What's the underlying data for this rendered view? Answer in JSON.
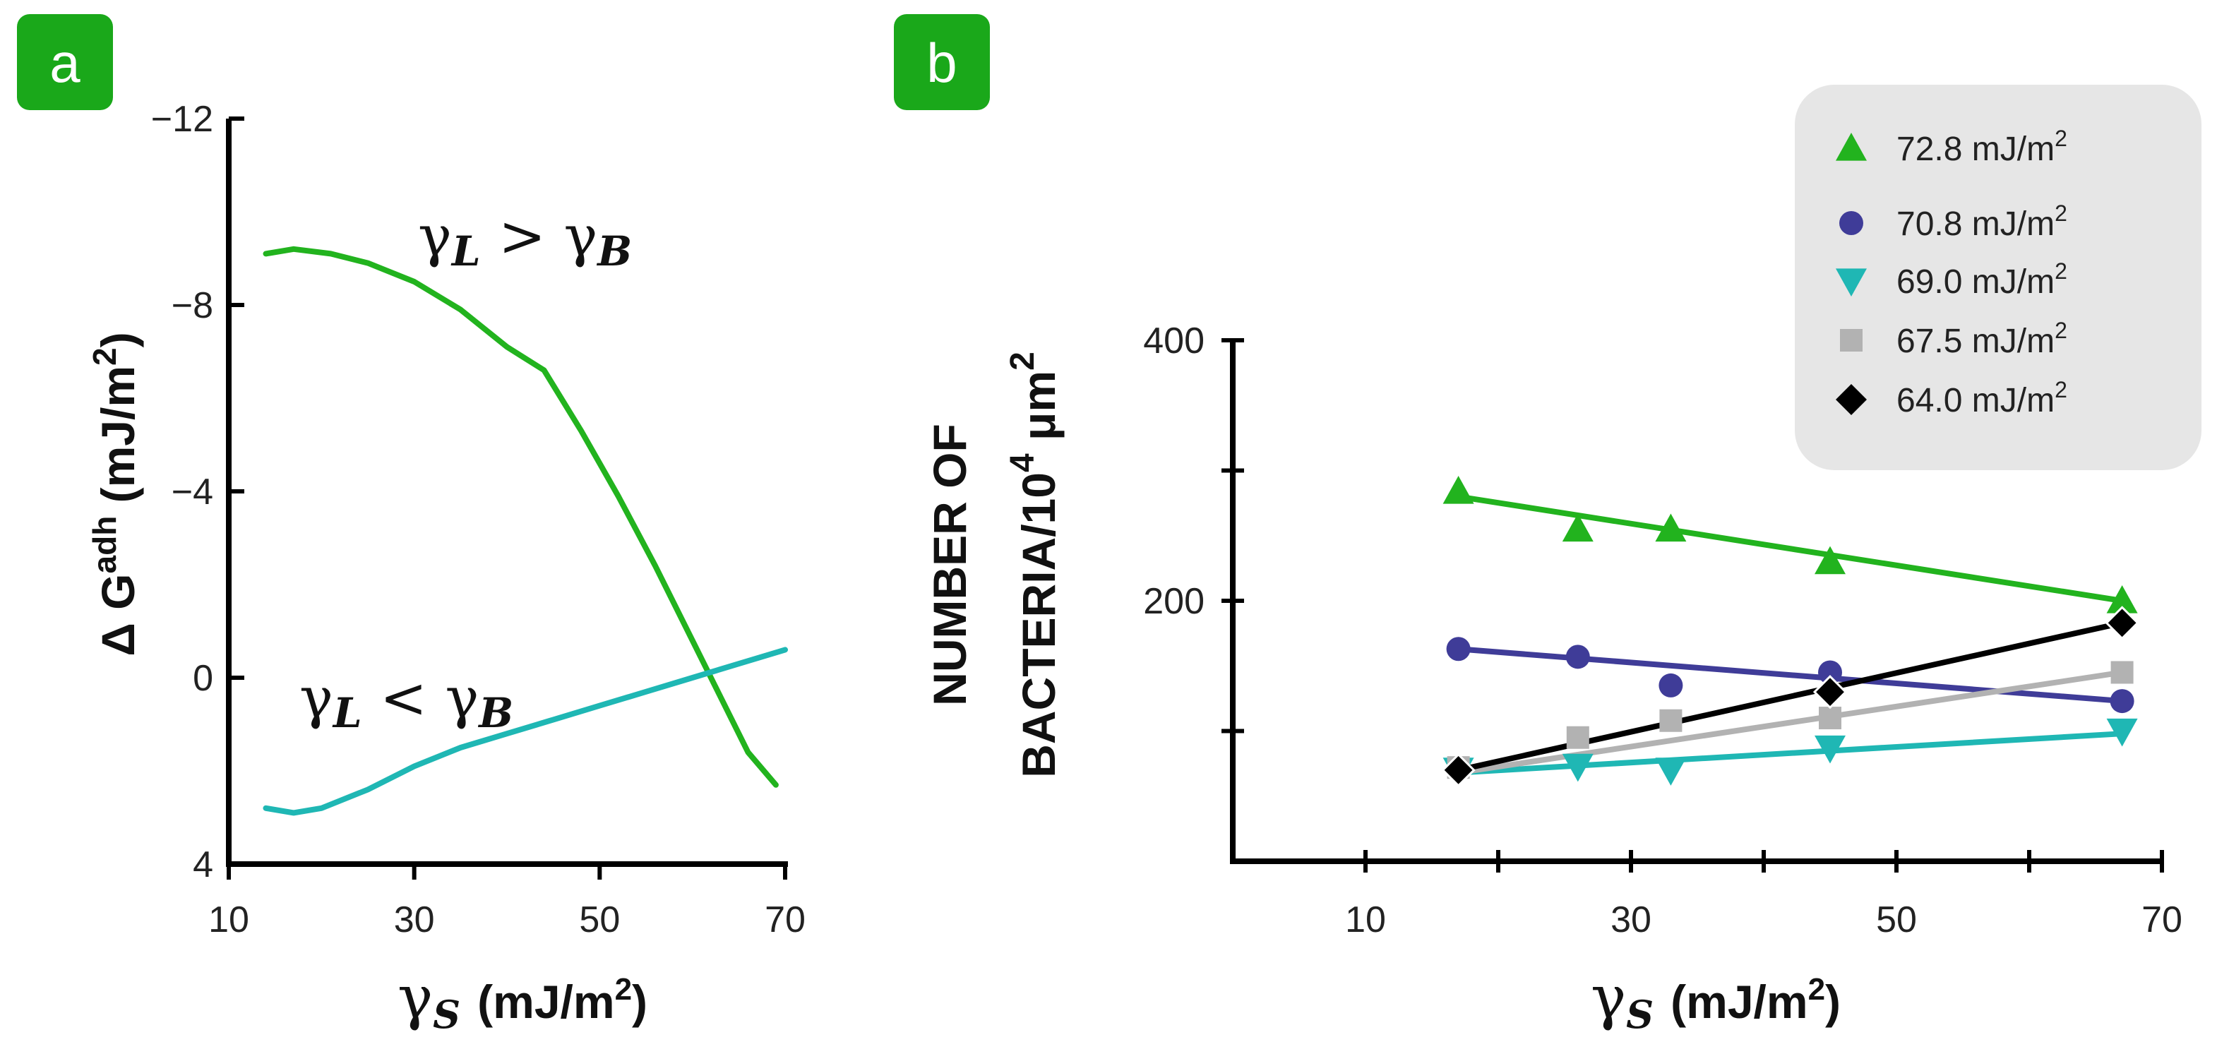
{
  "colors": {
    "green": "#22b31e",
    "navy": "#3f3c98",
    "teal": "#1fb7b4",
    "gray": "#b2b2b2",
    "black": "#000000",
    "label_bg": "#1aa81a",
    "legend_bg": "#e6e6e6"
  },
  "chart_data": [
    {
      "panel": "a",
      "type": "line",
      "xlabel_symbol": "γ",
      "xlabel_sub": "S",
      "xlabel_unit": "(mJ/m",
      "xlabel_sup": "2",
      "xlabel_close": ")",
      "ylabel_main": "Δ G",
      "ylabel_sup": "adh",
      "ylabel_unit": " (mJ/m",
      "ylabel_sup2": "2",
      "ylabel_close": ")",
      "xlim": [
        10,
        70
      ],
      "ylim": [
        4,
        -12
      ],
      "x_ticks": [
        10,
        30,
        50,
        70
      ],
      "x_tick_labels": [
        "10",
        "30",
        "50",
        "70"
      ],
      "y_ticks": [
        -12,
        -8,
        -4,
        0,
        4
      ],
      "y_tick_labels": [
        "−12",
        "−8",
        "−4",
        "0",
        "4"
      ],
      "series": [
        {
          "name": "γL > γB",
          "color_key": "green",
          "x": [
            14,
            17,
            21,
            25,
            30,
            35,
            40,
            44,
            48,
            52,
            56,
            60,
            63,
            66,
            69
          ],
          "y": [
            -9.1,
            -9.2,
            -9.1,
            -8.9,
            -8.5,
            -7.9,
            -7.1,
            -6.6,
            -5.3,
            -3.9,
            -2.4,
            -0.8,
            0.4,
            1.6,
            2.3
          ]
        },
        {
          "name": "γL < γB",
          "color_key": "teal",
          "x": [
            14,
            17,
            20,
            25,
            30,
            35,
            40,
            45,
            50,
            55,
            60,
            65,
            70
          ],
          "y": [
            2.8,
            2.9,
            2.8,
            2.4,
            1.9,
            1.5,
            1.2,
            0.9,
            0.6,
            0.3,
            0.0,
            -0.3,
            -0.6
          ]
        }
      ],
      "annotations": [
        {
          "symbol": "γ",
          "sub1": "L",
          "op": " > ",
          "symbol2": "γ",
          "sub2": "B"
        },
        {
          "symbol": "γ",
          "sub1": "L",
          "op": " < ",
          "symbol2": "γ",
          "sub2": "B"
        }
      ]
    },
    {
      "panel": "b",
      "type": "scatter",
      "xlabel_symbol": "γ",
      "xlabel_sub": "S",
      "xlabel_unit": "(mJ/m",
      "xlabel_sup": "2",
      "xlabel_close": ")",
      "ylabel_line1": "NUMBER OF",
      "ylabel_line2_a": "BACTERIA/10",
      "ylabel_line2_sup": "4",
      "ylabel_line2_b": " μm",
      "ylabel_line2_sup2": "2",
      "xlim": [
        0,
        70
      ],
      "ylim": [
        0,
        400
      ],
      "x_ticks": [
        10,
        30,
        50,
        70
      ],
      "x_tick_labels": [
        "10",
        "30",
        "50",
        "70"
      ],
      "x_minor_ticks": [
        10,
        20,
        30,
        40,
        50,
        60,
        70
      ],
      "y_ticks": [
        200,
        400
      ],
      "y_tick_labels": [
        "200",
        "400"
      ],
      "y_minor_ticks": [
        100,
        200,
        300,
        400
      ],
      "x": [
        17,
        26,
        33,
        45,
        67
      ],
      "series": [
        {
          "name": "72.8 mJ/m",
          "name_sup": "2",
          "marker": "triangle-up",
          "color_key": "green",
          "values": [
            284,
            255,
            255,
            230,
            200
          ],
          "fit": [
            280,
            200
          ]
        },
        {
          "name": "70.8 mJ/m",
          "name_sup": "2",
          "marker": "circle",
          "color_key": "navy",
          "values": [
            163,
            157,
            135,
            145,
            123
          ],
          "fit": [
            163,
            123
          ]
        },
        {
          "name": "69.0 mJ/m",
          "name_sup": "2",
          "marker": "triangle-down",
          "color_key": "teal",
          "values": [
            70,
            73,
            70,
            87,
            100
          ],
          "fit": [
            68,
            98
          ]
        },
        {
          "name": "67.5 mJ/m",
          "name_sup": "2",
          "marker": "square",
          "color_key": "gray",
          "values": [
            72,
            95,
            108,
            110,
            145
          ],
          "fit": [
            68,
            145
          ]
        },
        {
          "name": "64.0 mJ/m",
          "name_sup": "2",
          "marker": "diamond",
          "color_key": "black",
          "values": [
            70,
            0,
            0,
            130,
            183
          ],
          "fit": [
            70,
            183
          ],
          "shown": [
            true,
            false,
            false,
            true,
            true
          ]
        }
      ]
    }
  ]
}
